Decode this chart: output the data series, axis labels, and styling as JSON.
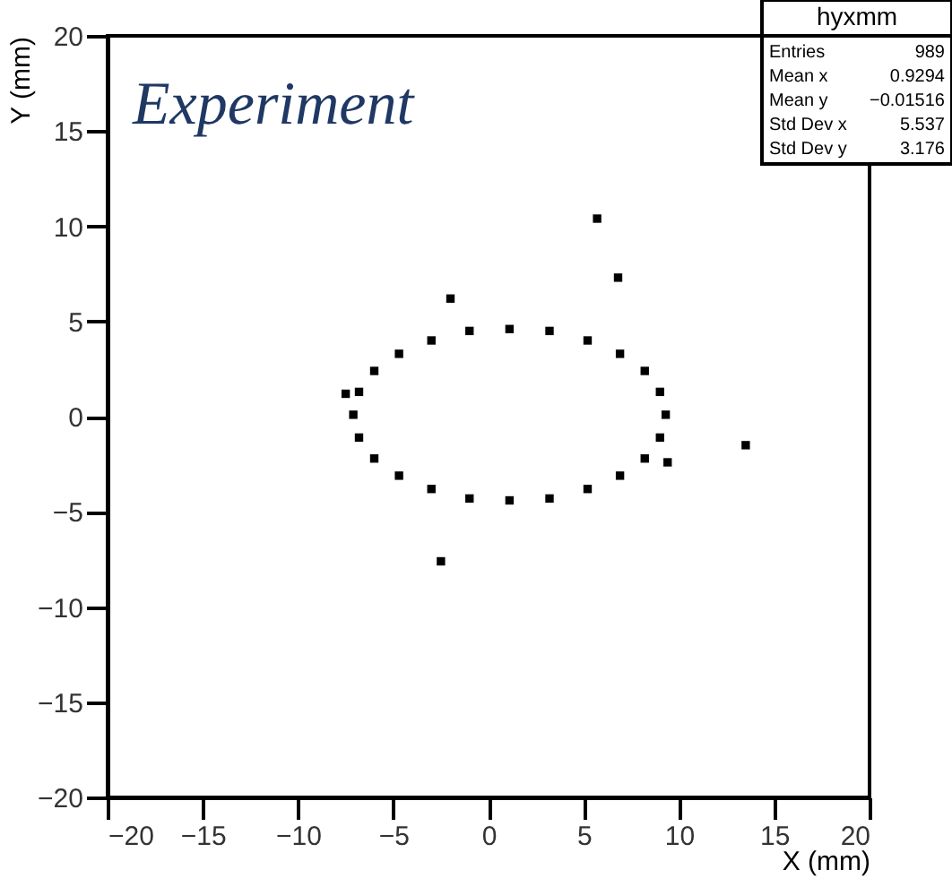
{
  "chart_data": {
    "type": "scatter",
    "title": "Experiment",
    "xlabel": "X (mm)",
    "ylabel": "Y (mm)",
    "annotations": [
      "hyxmm",
      "Entries 989",
      "Mean x 0.9294",
      "Mean y −0.01516",
      "Std Dev x 5.537",
      "Std Dev y 3.176"
    ],
    "series": [
      {
        "color": "#000000",
        "x": [
          9.3,
          9.0,
          8.2,
          6.9,
          5.2,
          3.2,
          1.1,
          -1.0,
          -3.0,
          -4.7,
          -6.0,
          -6.8,
          -7.1,
          -6.8,
          -6.0,
          -4.7,
          -3.0,
          -1.0,
          1.1,
          3.2,
          5.2,
          6.9,
          8.2,
          9.0,
          5.7,
          6.8,
          -2.0,
          -7.5,
          13.5,
          9.4,
          -2.5
        ],
        "values": [
          0.1,
          1.3,
          2.4,
          3.3,
          4.0,
          4.5,
          4.6,
          4.5,
          4.0,
          3.3,
          2.4,
          1.3,
          0.1,
          -1.1,
          -2.2,
          -3.1,
          -3.8,
          -4.3,
          -4.4,
          -4.3,
          -3.8,
          -3.1,
          -2.2,
          -1.1,
          10.4,
          7.3,
          6.2,
          1.2,
          -1.5,
          -2.4,
          -7.6
        ]
      }
    ],
    "xlim": [
      -20,
      20
    ],
    "ylim": [
      -20,
      20
    ],
    "xticks": [
      -20,
      -15,
      -10,
      -5,
      0,
      5,
      10,
      15,
      20
    ],
    "yticks": [
      -20,
      -15,
      -10,
      -5,
      0,
      5,
      10,
      15,
      20
    ],
    "marker": "square",
    "grid": false
  }
}
